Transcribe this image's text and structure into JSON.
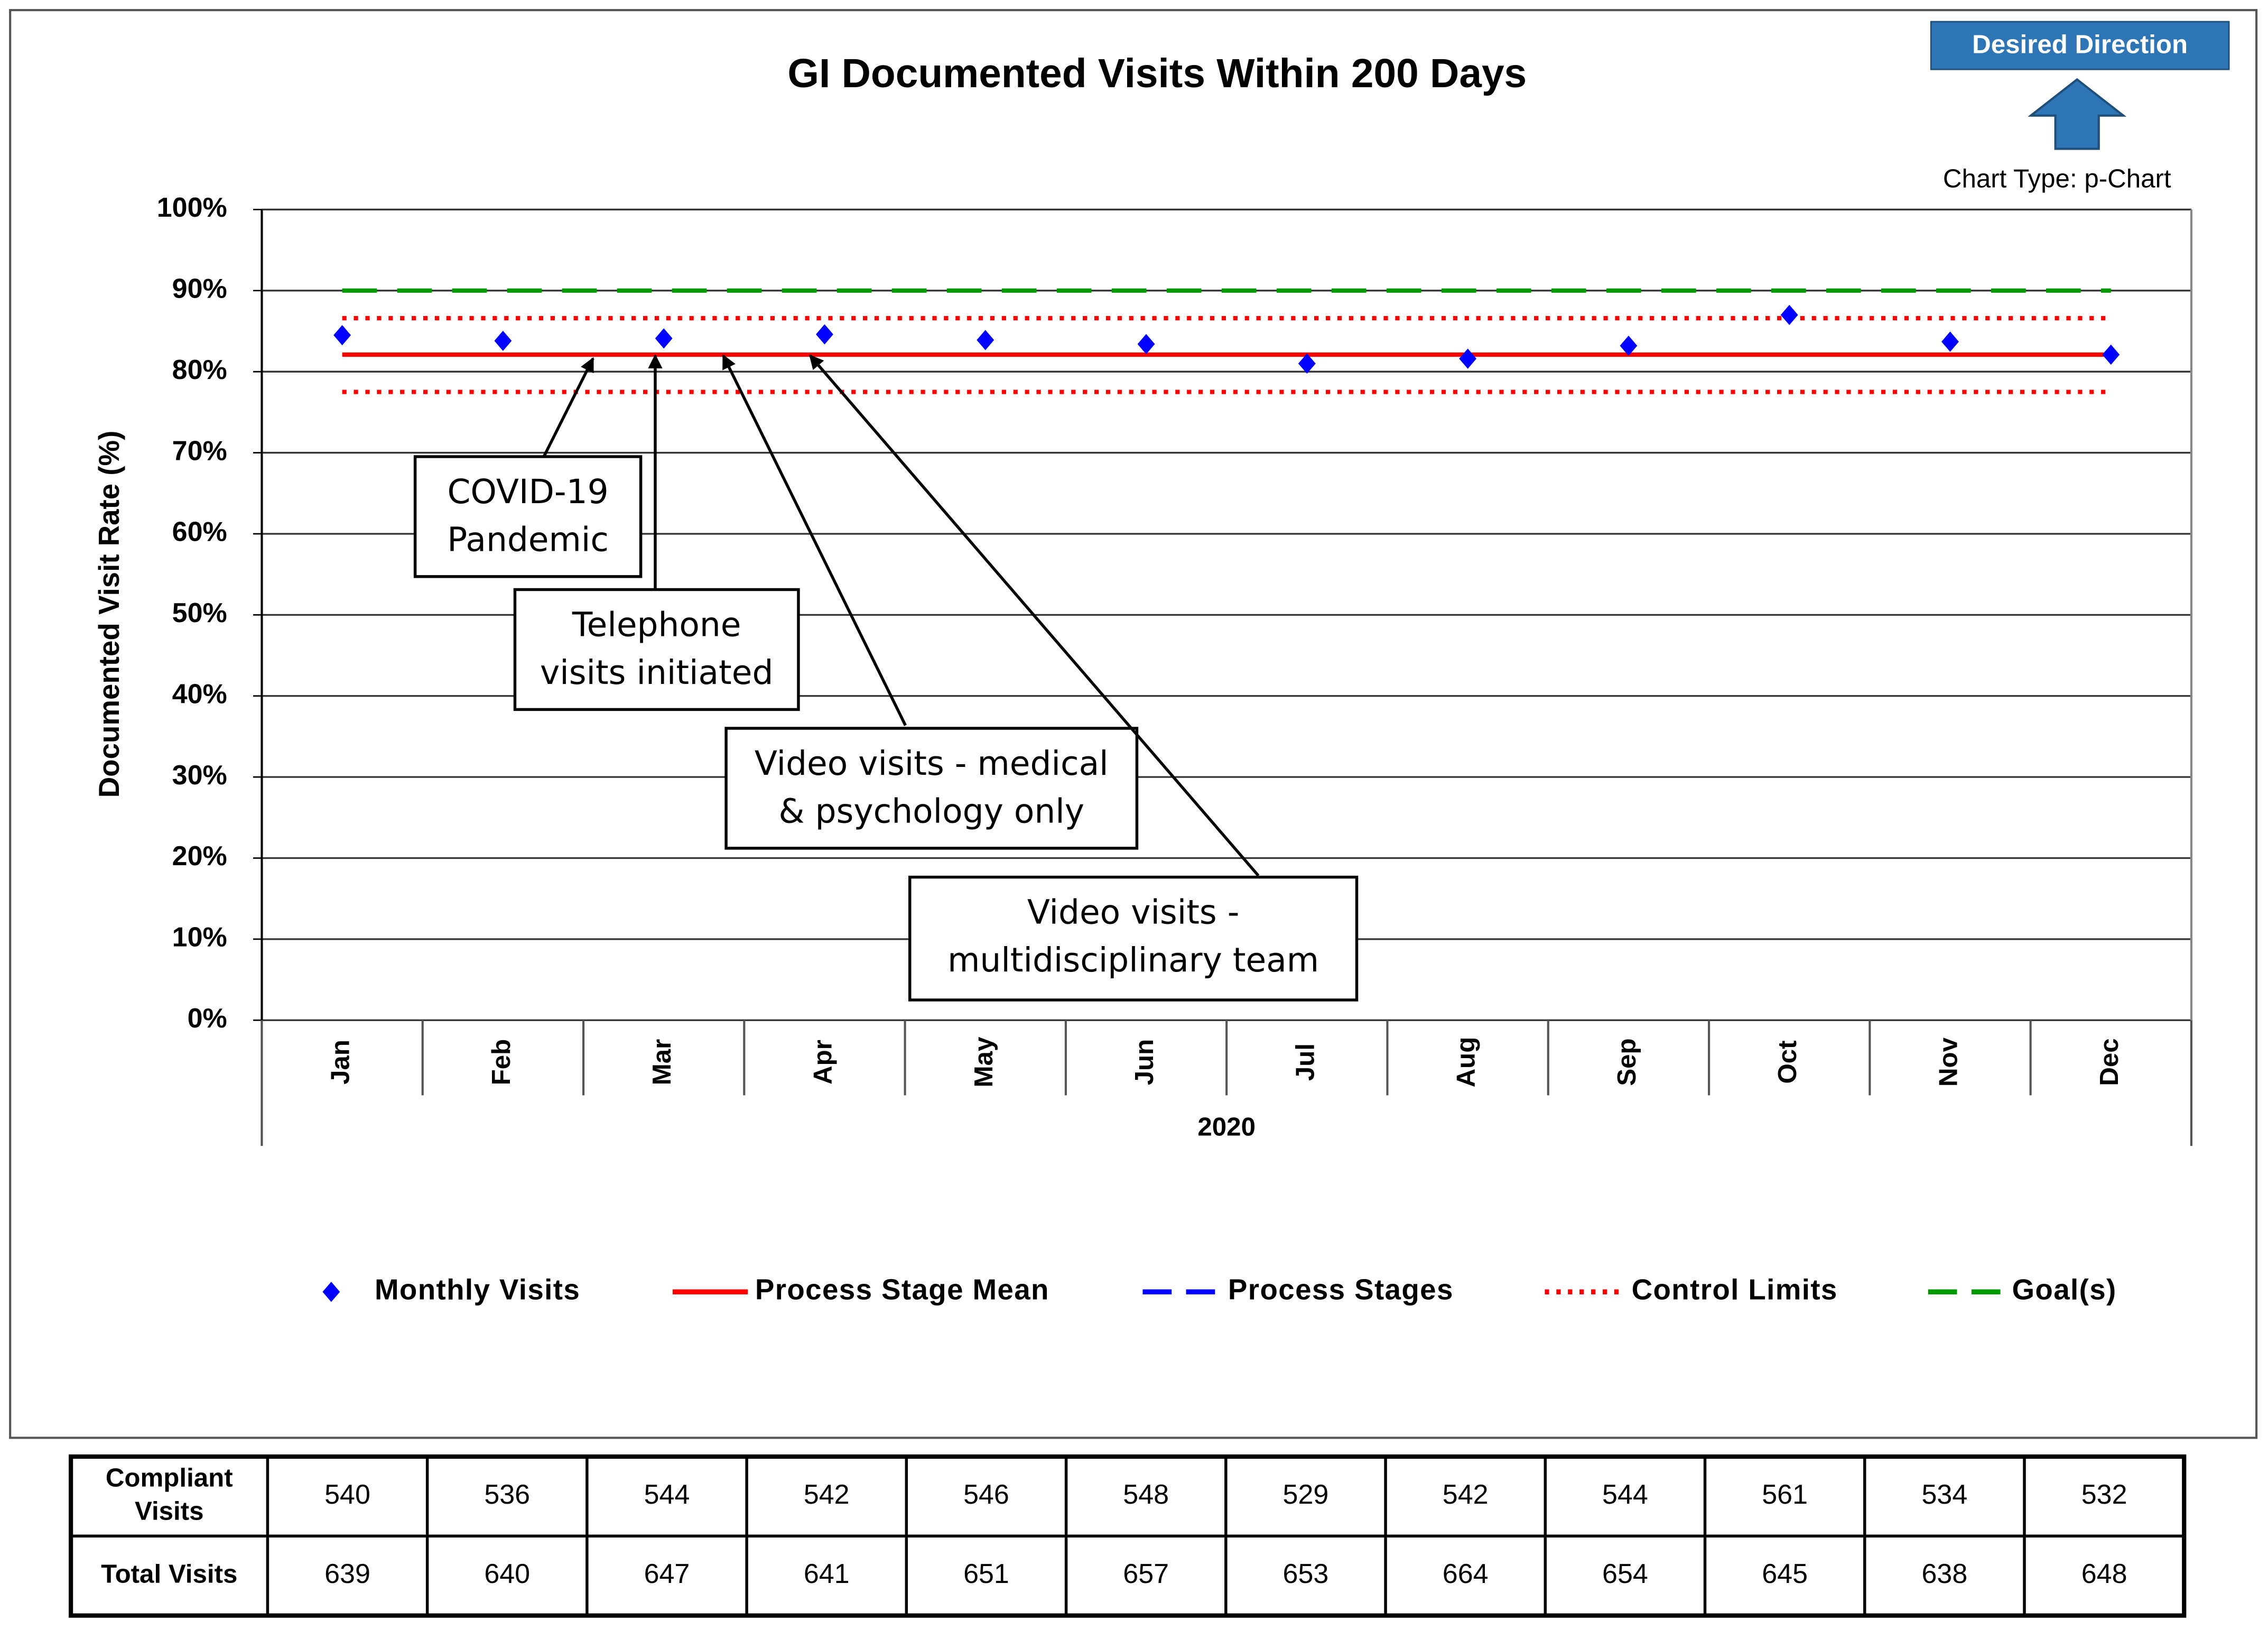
{
  "chart_data": {
    "type": "line",
    "title": "GI Documented Visits Within 200 Days",
    "badge": "Desired Direction",
    "chart_type_note": "Chart Type: p-Chart",
    "y_label": "Documented Visit Rate (%)",
    "x_group_label": "2020",
    "categories": [
      "Jan",
      "Feb",
      "Mar",
      "Apr",
      "May",
      "Jun",
      "Jul",
      "Aug",
      "Sep",
      "Oct",
      "Nov",
      "Dec"
    ],
    "ylim": [
      0,
      100
    ],
    "yticks": [
      {
        "value": 0,
        "label": "0%"
      },
      {
        "value": 10,
        "label": "10%"
      },
      {
        "value": 20,
        "label": "20%"
      },
      {
        "value": 30,
        "label": "30%"
      },
      {
        "value": 40,
        "label": "40%"
      },
      {
        "value": 50,
        "label": "50%"
      },
      {
        "value": 60,
        "label": "60%"
      },
      {
        "value": 70,
        "label": "70%"
      },
      {
        "value": 80,
        "label": "80%"
      },
      {
        "value": 90,
        "label": "90%"
      },
      {
        "value": 100,
        "label": "100%"
      }
    ],
    "grid": true,
    "series": [
      {
        "name": "Monthly Visits",
        "color": "#0000ff",
        "style": "marker",
        "values": [
          84.5,
          83.8,
          84.1,
          84.6,
          83.9,
          83.4,
          81.0,
          81.6,
          83.2,
          87.0,
          83.7,
          82.1
        ]
      },
      {
        "name": "Process Stage Mean",
        "color": "#ff0000",
        "style": "solid",
        "values": [
          82.1,
          82.1,
          82.1,
          82.1,
          82.1,
          82.1,
          82.1,
          82.1,
          82.1,
          82.1,
          82.1,
          82.1
        ]
      },
      {
        "name": "Process Stages",
        "color": "#0000ff",
        "style": "dashed"
      },
      {
        "name": "Control Limits",
        "color": "#ff0000",
        "style": "dotted",
        "values": [
          86.6,
          86.6,
          86.6,
          86.6,
          86.6,
          86.6,
          86.6,
          86.6,
          86.6,
          86.6,
          86.6,
          86.6
        ],
        "lower": [
          77.5,
          77.5,
          77.5,
          77.5,
          77.5,
          77.5,
          77.5,
          77.5,
          77.5,
          77.5,
          77.5,
          77.5
        ]
      },
      {
        "name": "Goal(s)",
        "color": "#009900",
        "style": "dashed",
        "values": [
          90,
          90,
          90,
          90,
          90,
          90,
          90,
          90,
          90,
          90,
          90,
          90
        ]
      }
    ],
    "annotations": [
      [
        "COVID-19",
        "Pandemic"
      ],
      [
        "Telephone",
        "visits initiated"
      ],
      [
        "Video visits - medical",
        "& psychology only"
      ],
      [
        "Video visits -",
        "multidisciplinary team"
      ]
    ]
  },
  "table": {
    "rows": [
      {
        "label": [
          "Compliant",
          "Visits"
        ],
        "values": [
          540,
          536,
          544,
          542,
          546,
          548,
          529,
          542,
          544,
          561,
          534,
          532
        ]
      },
      {
        "label": [
          "Total Visits"
        ],
        "values": [
          639,
          640,
          647,
          641,
          651,
          657,
          653,
          664,
          654,
          645,
          638,
          648
        ]
      }
    ]
  }
}
